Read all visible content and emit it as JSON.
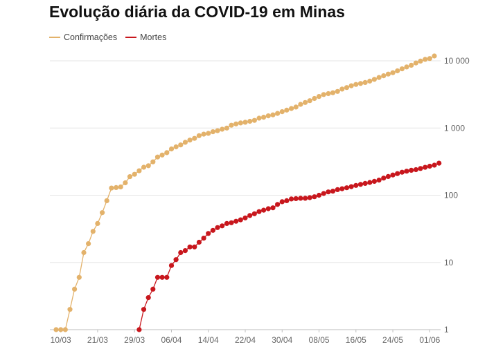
{
  "chart_data": {
    "type": "line",
    "title": "Evolução diária da COVID-19 em Minas",
    "yscale": "log",
    "ylim": [
      1,
      10000
    ],
    "yticks": [
      {
        "value": 1,
        "label": "1"
      },
      {
        "value": 10,
        "label": "10"
      },
      {
        "value": 100,
        "label": "100"
      },
      {
        "value": 1000,
        "label": "1 000"
      },
      {
        "value": 10000,
        "label": "10 000"
      }
    ],
    "xticks": [
      {
        "index": 1,
        "label": "10/03"
      },
      {
        "index": 9,
        "label": "21/03"
      },
      {
        "index": 17,
        "label": "29/03"
      },
      {
        "index": 25,
        "label": "06/04"
      },
      {
        "index": 33,
        "label": "14/04"
      },
      {
        "index": 41,
        "label": "22/04"
      },
      {
        "index": 49,
        "label": "30/04"
      },
      {
        "index": 57,
        "label": "08/05"
      },
      {
        "index": 65,
        "label": "16/05"
      },
      {
        "index": 73,
        "label": "24/05"
      },
      {
        "index": 81,
        "label": "01/06"
      }
    ],
    "x_start_date": "09/03",
    "x_end_date": "02/06",
    "grid": true,
    "legend": "top-left",
    "series": [
      {
        "name": "Confirmações",
        "color": "#e3b26b",
        "start_index": 0,
        "values": [
          1,
          1,
          1,
          2,
          4,
          6,
          14,
          19,
          29,
          38,
          55,
          83,
          128,
          130,
          133,
          153,
          189,
          205,
          231,
          261,
          275,
          314,
          370,
          397,
          430,
          489,
          525,
          560,
          614,
          661,
          702,
          770,
          810,
          833,
          880,
          912,
          960,
          1000,
          1100,
          1150,
          1190,
          1220,
          1260,
          1300,
          1400,
          1450,
          1520,
          1570,
          1650,
          1750,
          1850,
          1950,
          2050,
          2250,
          2400,
          2550,
          2750,
          2950,
          3150,
          3250,
          3350,
          3500,
          3800,
          4000,
          4250,
          4450,
          4600,
          4750,
          5000,
          5300,
          5650,
          6000,
          6350,
          6650,
          7100,
          7600,
          8100,
          8600,
          9300,
          9900,
          10500,
          10800,
          11800
        ]
      },
      {
        "name": "Mortes",
        "color": "#c8171d",
        "start_index": 18,
        "values": [
          1,
          2,
          3,
          4,
          6,
          6,
          6,
          9,
          11,
          14,
          15,
          17,
          17,
          20,
          23,
          27,
          30,
          33,
          35,
          38,
          39,
          41,
          43,
          46,
          50,
          53,
          57,
          60,
          63,
          65,
          73,
          80,
          83,
          88,
          89,
          90,
          90,
          92,
          95,
          100,
          106,
          112,
          115,
          121,
          125,
          129,
          134,
          140,
          145,
          150,
          155,
          161,
          168,
          180,
          190,
          200,
          210,
          220,
          228,
          235,
          240,
          250,
          260,
          270,
          280,
          300
        ]
      }
    ]
  }
}
